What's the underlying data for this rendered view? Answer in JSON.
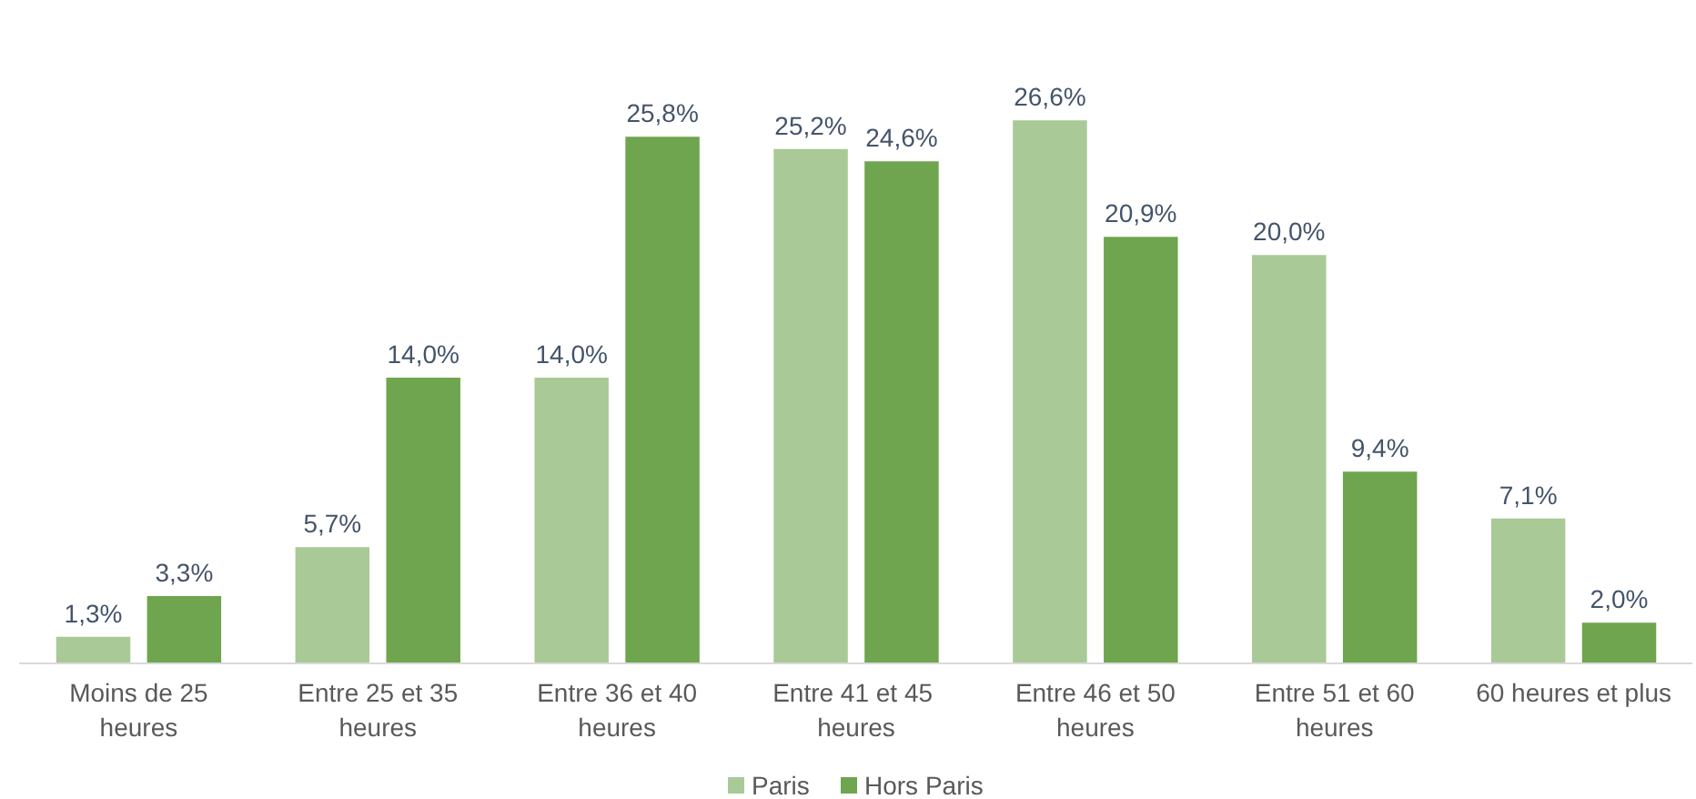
{
  "chart_data": {
    "type": "bar",
    "categories": [
      "Moins de 25\nheures",
      "Entre 25 et 35\nheures",
      "Entre 36 et 40\nheures",
      "Entre 41 et  45\nheures",
      "Entre 46 et 50\nheures",
      "Entre 51 et 60\nheures",
      "60 heures et plus"
    ],
    "series": [
      {
        "name": "Paris",
        "color": "#a9c996",
        "values": [
          1.3,
          5.7,
          14.0,
          25.2,
          26.6,
          20.0,
          7.1
        ],
        "value_labels": [
          "1,3%",
          "5,7%",
          "14,0%",
          "25,2%",
          "26,6%",
          "20,0%",
          "7,1%"
        ]
      },
      {
        "name": "Hors Paris",
        "color": "#6ea54e",
        "values": [
          3.3,
          14.0,
          25.8,
          24.6,
          20.9,
          9.4,
          2.0
        ],
        "value_labels": [
          "3,3%",
          "14,0%",
          "25,8%",
          "24,6%",
          "20,9%",
          "9,4%",
          "2,0%"
        ]
      }
    ],
    "legend": "bottom",
    "tick_labels": "x"
  }
}
